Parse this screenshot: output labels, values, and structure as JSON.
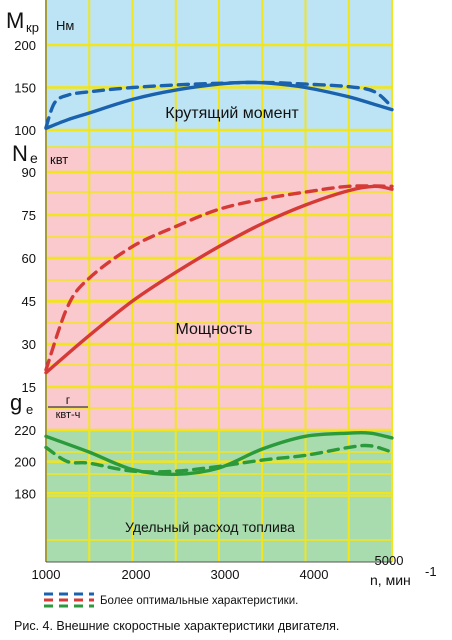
{
  "chart_data": {
    "type": "line",
    "x": [
      1000,
      1500,
      2000,
      2500,
      3000,
      3500,
      4000,
      4500,
      5000
    ],
    "xticks": [
      1000,
      2000,
      3000,
      4000,
      5000
    ],
    "xlim": [
      1000,
      5000
    ],
    "xlabel": "n, мин",
    "xlabel_sup": "-1",
    "panels": [
      {
        "name": "Крутящий момент",
        "ylabel_main": "М",
        "ylabel_sub": "кр",
        "unit": "Нм",
        "ylim": [
          100,
          200
        ],
        "yticks": [
          100,
          150,
          200
        ],
        "background": "#bde4f4",
        "series": [
          {
            "style": "solid",
            "color": "#1a62ad",
            "x": [
              1000,
              1250,
              1500,
              2000,
              2500,
              3000,
              3300,
              3600,
              4000,
              4500,
              4800,
              5000
            ],
            "values": [
              102,
              112,
              120,
              136,
              147,
              154,
              156,
              155,
              150,
              139,
              130,
              124
            ]
          },
          {
            "style": "dashed",
            "color": "#1a62ad",
            "x": [
              1000,
              1100,
              1250,
              1500,
              2000,
              2500,
              3000,
              3500,
              4000,
              4500,
              4800,
              5000
            ],
            "values": [
              103,
              132,
              141,
              145,
              150,
              153,
              155,
              156,
              154,
              151,
              145,
              127
            ]
          }
        ]
      },
      {
        "name": "Мощность",
        "ylabel_main": "N",
        "ylabel_sub": "е",
        "unit": "квт",
        "ylim": [
          15,
          90
        ],
        "yticks": [
          15,
          30,
          45,
          60,
          75,
          90
        ],
        "background": "#f9c9cd",
        "series": [
          {
            "style": "solid",
            "color": "#d63a36",
            "x": [
              1000,
              1500,
              2000,
              2500,
              3000,
              3500,
              4000,
              4500,
              4800,
              5000
            ],
            "values": [
              20,
              33,
              45,
              55,
              64,
              72,
              78.5,
              83.5,
              85,
              84
            ]
          },
          {
            "style": "dashed",
            "color": "#d63a36",
            "x": [
              1000,
              1250,
              1500,
              2000,
              2500,
              3000,
              3500,
              4000,
              4500,
              5000
            ],
            "values": [
              21,
              43,
              53,
              64,
              71,
              77,
              80.5,
              83,
              85,
              85
            ]
          }
        ]
      },
      {
        "name": "Удельный расход топлива",
        "ylabel_main": "g",
        "ylabel_sub": "е",
        "unit_num": "г",
        "unit_den": "квт-ч",
        "ylim": [
          165,
          220
        ],
        "yticks": [
          180,
          200,
          220
        ],
        "background": "#a8dcae",
        "series": [
          {
            "style": "solid",
            "color": "#2a9a3a",
            "x": [
              1000,
              1500,
              2000,
              2500,
              3000,
              3500,
              4000,
              4500,
              4750,
              5000
            ],
            "values": [
              216,
              206,
              195,
              192,
              196,
              208,
              216,
              218,
              218,
              215
            ]
          },
          {
            "style": "dashed",
            "color": "#2a9a3a",
            "x": [
              1000,
              1250,
              1500,
              2000,
              2500,
              3000,
              3500,
              4000,
              4500,
              4750,
              5000
            ],
            "values": [
              209,
              200,
              199,
              194,
              194,
              197,
              201,
              204,
              209,
              210,
              206
            ]
          }
        ]
      }
    ],
    "legend": {
      "text": "Более оптимальные характеристики.",
      "colors": [
        "#1a62ad",
        "#d63a36",
        "#2a9a3a"
      ]
    },
    "caption": "Рис. 4. Внешние скоростные характеристики двигателя.",
    "grid": true,
    "grid_color": "#f2e51e"
  }
}
